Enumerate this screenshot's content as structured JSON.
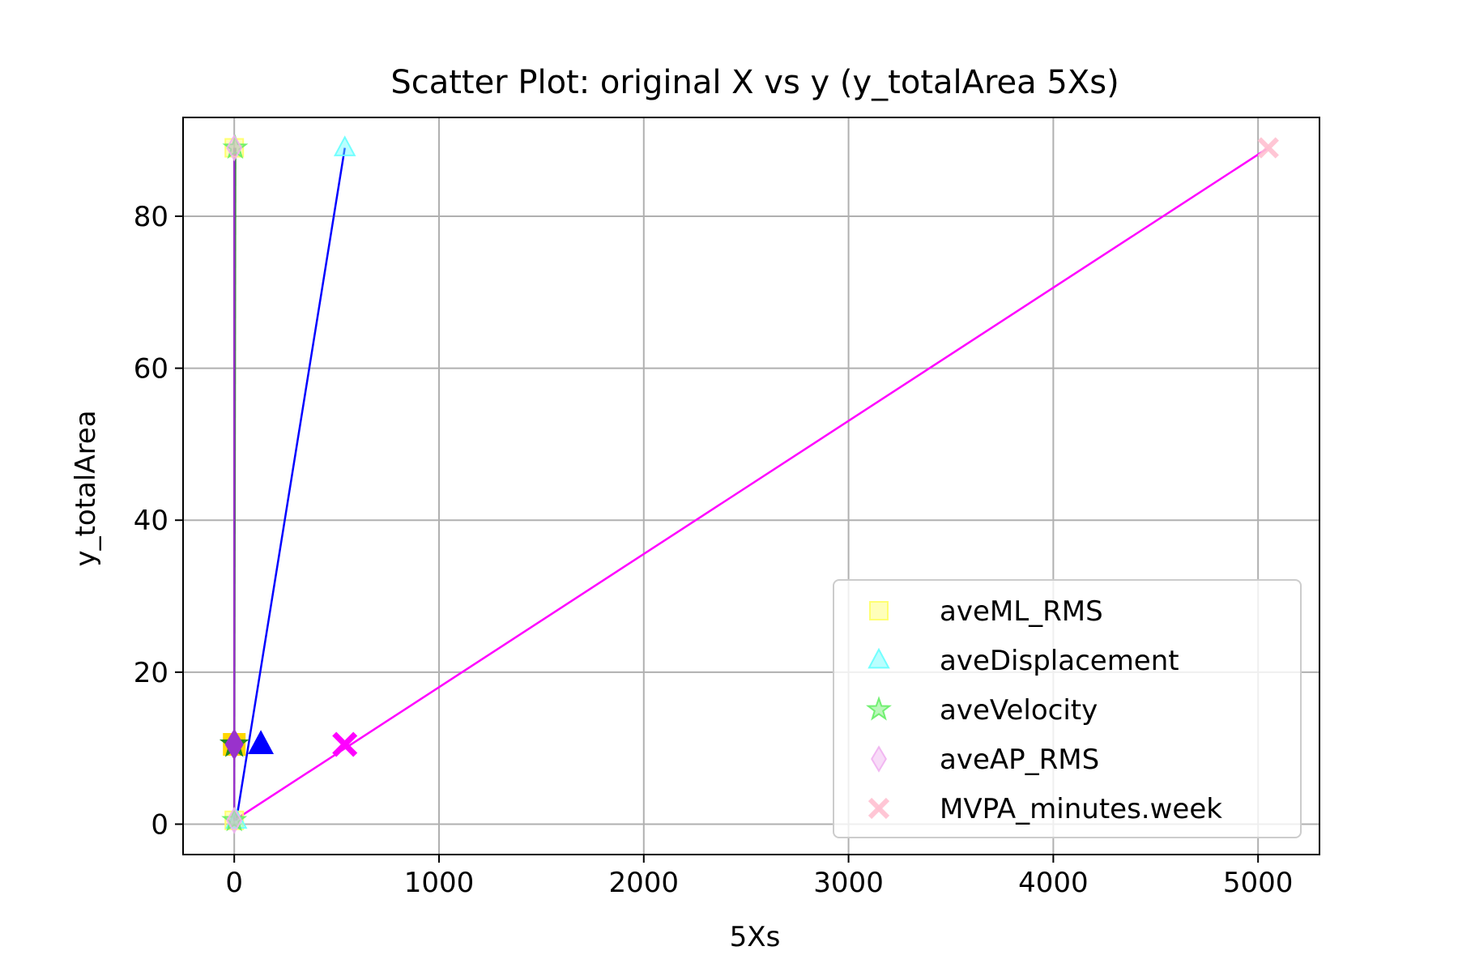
{
  "chart_data": {
    "type": "scatter",
    "title": "Scatter Plot: original X vs y (y_totalArea 5Xs)",
    "xlabel": "5Xs",
    "ylabel": "y_totalArea",
    "xlim": [
      -250,
      5300
    ],
    "ylim": [
      -4,
      93
    ],
    "xticks": [
      0,
      1000,
      2000,
      3000,
      4000,
      5000
    ],
    "yticks": [
      0,
      20,
      40,
      60,
      80
    ],
    "grid": true,
    "legend_position": "lower-right",
    "series": [
      {
        "name": "aveML_RMS",
        "marker": "square",
        "color": "#ffff66",
        "points": [
          [
            0,
            0.5
          ],
          [
            0,
            89
          ]
        ]
      },
      {
        "name": "aveDisplacement",
        "marker": "triangle",
        "color": "#66ffff",
        "points": [
          [
            10,
            0.5
          ],
          [
            540,
            89
          ]
        ]
      },
      {
        "name": "aveVelocity",
        "marker": "star",
        "color": "#66ee66",
        "points": [
          [
            0,
            0.5
          ],
          [
            5,
            89
          ]
        ]
      },
      {
        "name": "aveAP_RMS",
        "marker": "diamond",
        "color": "#f0b0f0",
        "points": [
          [
            0,
            0.5
          ],
          [
            0,
            89
          ]
        ]
      },
      {
        "name": "MVPA_minutes.week",
        "marker": "x",
        "color": "#ffc0d0",
        "points": [
          [
            5050,
            89
          ]
        ]
      }
    ],
    "fit_lines": [
      {
        "color": "#ffd700",
        "from": [
          0,
          0.5
        ],
        "to": [
          0,
          89
        ]
      },
      {
        "color": "#0000ff",
        "from": [
          10,
          0.5
        ],
        "to": [
          540,
          89
        ]
      },
      {
        "color": "#228b22",
        "from": [
          0,
          0.5
        ],
        "to": [
          5,
          89
        ]
      },
      {
        "color": "#9932cc",
        "from": [
          0,
          0.5
        ],
        "to": [
          0,
          89
        ]
      },
      {
        "color": "#ff00ff",
        "from": [
          0,
          0.5
        ],
        "to": [
          5050,
          89
        ]
      }
    ],
    "mean_markers": [
      {
        "marker": "square",
        "color": "#ffd700",
        "point": [
          0,
          10.5
        ]
      },
      {
        "marker": "triangle",
        "color": "#0000ff",
        "point": [
          130,
          10.5
        ]
      },
      {
        "marker": "star",
        "color": "#228b22",
        "point": [
          0,
          10.5
        ]
      },
      {
        "marker": "diamond",
        "color": "#9932cc",
        "point": [
          0,
          10.5
        ]
      },
      {
        "marker": "x",
        "color": "#ff00ff",
        "point": [
          540,
          10.5
        ]
      }
    ]
  }
}
